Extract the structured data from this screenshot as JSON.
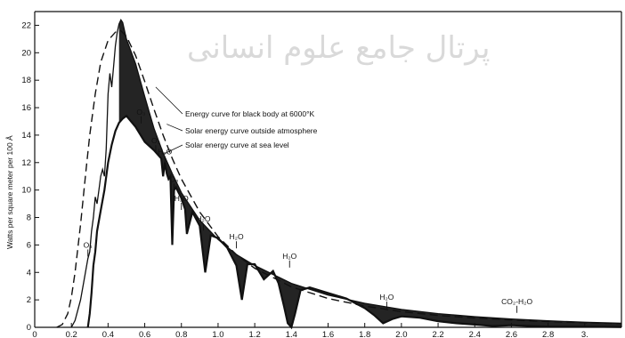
{
  "watermark": "پرتال جامع علوم انسانی",
  "chart_data": {
    "type": "line",
    "title": "",
    "xlabel": "",
    "ylabel": "Watts per square meter per 100 Å",
    "xlim": [
      0,
      3.2
    ],
    "ylim": [
      0,
      23
    ],
    "x_ticks": [
      0,
      0.2,
      0.4,
      0.6,
      0.8,
      1.0,
      1.2,
      1.4,
      1.6,
      1.8,
      2.0,
      2.2,
      2.4,
      2.6,
      2.8,
      3.0
    ],
    "x_tick_labels": [
      "0",
      "0.2",
      "0.4",
      "0.6",
      "0.8",
      "1.0",
      "1.2",
      "1.4",
      "1.6",
      "1.8",
      "2.0",
      "2.2",
      "2.4",
      "2.6",
      "2.8",
      "3."
    ],
    "y_ticks": [
      0,
      2,
      4,
      6,
      8,
      10,
      12,
      14,
      16,
      18,
      20,
      22
    ],
    "y_tick_labels": [
      "0",
      "2",
      "4",
      "6",
      "8",
      "10",
      "12",
      "14",
      "16",
      "18",
      "20",
      "22"
    ],
    "grid": false,
    "legend": [
      "Energy curve for black body at 6000°K",
      "Solar energy curve outside atmosphere",
      "Solar energy curve at sea level"
    ],
    "series": [
      {
        "name": "Energy curve for black body at 6000°K",
        "style": "dashed",
        "x": [
          0.12,
          0.15,
          0.18,
          0.2,
          0.22,
          0.25,
          0.28,
          0.3,
          0.33,
          0.36,
          0.4,
          0.44,
          0.47,
          0.5,
          0.55,
          0.6,
          0.65,
          0.7,
          0.75,
          0.8,
          0.9,
          1.0,
          1.1,
          1.2,
          1.4,
          1.6,
          1.8,
          2.0,
          2.2,
          2.4,
          2.6,
          2.8,
          3.0,
          3.2
        ],
        "y": [
          0,
          0.2,
          1.0,
          2.2,
          4.0,
          7.5,
          11.5,
          14.0,
          17.0,
          19.3,
          20.9,
          21.5,
          21.6,
          21.2,
          19.8,
          17.9,
          15.9,
          14.0,
          12.3,
          10.8,
          8.4,
          6.6,
          5.3,
          4.3,
          2.95,
          2.1,
          1.55,
          1.15,
          0.87,
          0.68,
          0.53,
          0.42,
          0.34,
          0.27
        ]
      },
      {
        "name": "Solar energy curve outside atmosphere",
        "style": "solid",
        "x": [
          0.2,
          0.22,
          0.25,
          0.27,
          0.29,
          0.3,
          0.31,
          0.32,
          0.33,
          0.34,
          0.35,
          0.36,
          0.37,
          0.38,
          0.39,
          0.4,
          0.41,
          0.42,
          0.43,
          0.44,
          0.45,
          0.46,
          0.47,
          0.48,
          0.5,
          0.55,
          0.6,
          0.65,
          0.7,
          0.75,
          0.8,
          0.9,
          1.0,
          1.1,
          1.2,
          1.4,
          1.6,
          1.8,
          2.0,
          2.2,
          2.4,
          2.6,
          2.8,
          3.0,
          3.2
        ],
        "y": [
          0,
          0.5,
          2.0,
          3.5,
          5.0,
          5.5,
          7.0,
          8.0,
          9.5,
          9.0,
          10.0,
          11.0,
          11.5,
          11.0,
          13.0,
          17.0,
          18.5,
          17.5,
          19.0,
          20.5,
          21.5,
          22.1,
          22.4,
          22.2,
          21.0,
          19.2,
          16.8,
          14.5,
          12.7,
          11.2,
          9.8,
          7.8,
          6.4,
          5.3,
          4.5,
          3.2,
          2.35,
          1.75,
          1.3,
          1.0,
          0.78,
          0.6,
          0.47,
          0.37,
          0.3
        ]
      },
      {
        "name": "Solar energy curve at sea level",
        "style": "solid-bold",
        "x": [
          0.29,
          0.3,
          0.31,
          0.32,
          0.33,
          0.34,
          0.36,
          0.38,
          0.4,
          0.42,
          0.44,
          0.46,
          0.48,
          0.5,
          0.55,
          0.6,
          0.65,
          0.69,
          0.7,
          0.71,
          0.72,
          0.73,
          0.74,
          0.75,
          0.76,
          0.77,
          0.8,
          0.82,
          0.83,
          0.86,
          0.9,
          0.93,
          0.96,
          1.0,
          1.05,
          1.1,
          1.13,
          1.16,
          1.2,
          1.25,
          1.3,
          1.33,
          1.36,
          1.38,
          1.4,
          1.42,
          1.45,
          1.5,
          1.6,
          1.7,
          1.8,
          1.85,
          1.9,
          1.95,
          2.0,
          2.1,
          2.2,
          2.3,
          2.4,
          2.5,
          2.6,
          2.7,
          2.8,
          3.0,
          3.2
        ],
        "y": [
          0,
          1.0,
          2.5,
          4.5,
          5.5,
          7.0,
          8.5,
          10.0,
          12.0,
          13.3,
          14.3,
          14.9,
          15.2,
          15.4,
          14.6,
          13.5,
          12.9,
          12.3,
          11.0,
          12.0,
          11.2,
          10.8,
          11.0,
          6.0,
          10.0,
          10.2,
          9.4,
          8.6,
          6.8,
          8.4,
          7.4,
          4.0,
          6.7,
          6.5,
          5.8,
          4.5,
          2.0,
          4.6,
          4.6,
          3.5,
          4.1,
          3.2,
          1.5,
          0.3,
          0.0,
          1.0,
          2.7,
          2.9,
          2.5,
          2.1,
          1.4,
          0.9,
          0.3,
          0.6,
          0.8,
          0.7,
          0.45,
          0.3,
          0.2,
          0.1,
          0.15,
          0.1,
          0.05,
          0.05,
          0.02
        ]
      }
    ],
    "annotations": [
      {
        "text": "O₃",
        "x": 0.58,
        "y": 15.5
      },
      {
        "text": "O₂",
        "x": 0.66,
        "y": 13.4
      },
      {
        "text": "H₂O",
        "x": 0.71,
        "y": 12.6
      },
      {
        "text": "O₂",
        "x": 0.76,
        "y": 10.6
      },
      {
        "text": "H₂O",
        "x": 0.8,
        "y": 9.2
      },
      {
        "text": "H₂O",
        "x": 0.92,
        "y": 7.7
      },
      {
        "text": "H₂O",
        "x": 1.1,
        "y": 6.4
      },
      {
        "text": "H₂O",
        "x": 1.39,
        "y": 5.0
      },
      {
        "text": "O₃",
        "x": 0.29,
        "y": 5.8
      },
      {
        "text": "H₂O",
        "x": 1.92,
        "y": 2.0
      },
      {
        "text": "CO₂-H₂O",
        "x": 2.63,
        "y": 1.7
      }
    ]
  }
}
